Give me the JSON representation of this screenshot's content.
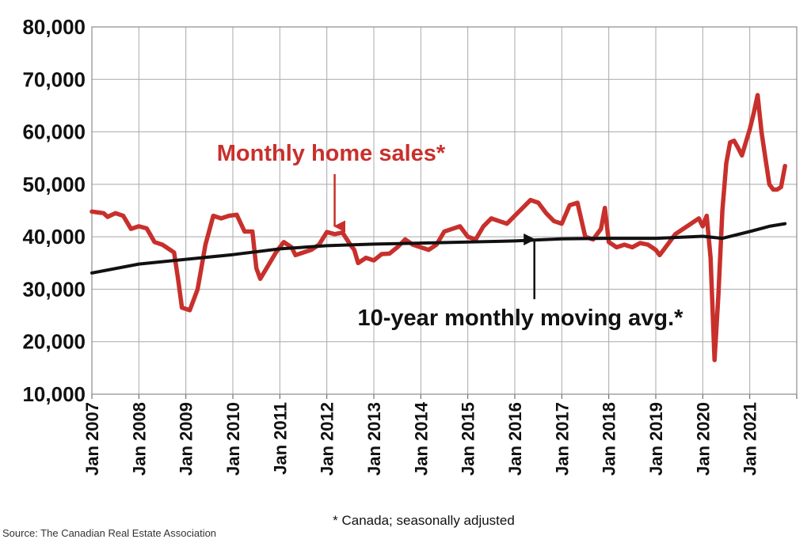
{
  "chart_data": {
    "type": "line",
    "x_tick_labels": [
      "Jan 2007",
      "Jan 2008",
      "Jan 2009",
      "Jan 2010",
      "Jan 2011",
      "Jan 2012",
      "Jan 2013",
      "Jan 2014",
      "Jan 2015",
      "Jan 2016",
      "Jan 2017",
      "Jan 2018",
      "Jan 2019",
      "Jan 2020",
      "Jan 2021"
    ],
    "y_tick_labels": [
      "10,000",
      "20,000",
      "30,000",
      "40,000",
      "50,000",
      "60,000",
      "70,000",
      "80,000"
    ],
    "ylim": [
      10000,
      80000
    ],
    "xlim": [
      "2007-01",
      "2022-01"
    ],
    "grid": true,
    "series": [
      {
        "name": "Monthly home sales*",
        "color": "#c8302c",
        "points": [
          [
            "2007-01",
            44800
          ],
          [
            "2007-04",
            44500
          ],
          [
            "2007-05",
            43800
          ],
          [
            "2007-07",
            44500
          ],
          [
            "2007-09",
            44000
          ],
          [
            "2007-11",
            41500
          ],
          [
            "2008-01",
            42000
          ],
          [
            "2008-03",
            41600
          ],
          [
            "2008-05",
            39000
          ],
          [
            "2008-07",
            38500
          ],
          [
            "2008-09",
            37500
          ],
          [
            "2008-10",
            37000
          ],
          [
            "2008-11",
            32000
          ],
          [
            "2008-12",
            26500
          ],
          [
            "2009-02",
            26000
          ],
          [
            "2009-04",
            30000
          ],
          [
            "2009-06",
            38500
          ],
          [
            "2009-08",
            44000
          ],
          [
            "2009-10",
            43500
          ],
          [
            "2009-12",
            44000
          ],
          [
            "2010-02",
            44200
          ],
          [
            "2010-04",
            41000
          ],
          [
            "2010-06",
            41000
          ],
          [
            "2010-07",
            34000
          ],
          [
            "2010-08",
            32000
          ],
          [
            "2010-10",
            34500
          ],
          [
            "2010-12",
            37000
          ],
          [
            "2011-01",
            38000
          ],
          [
            "2011-02",
            39000
          ],
          [
            "2011-04",
            38000
          ],
          [
            "2011-05",
            36500
          ],
          [
            "2011-07",
            37000
          ],
          [
            "2011-09",
            37500
          ],
          [
            "2011-11",
            38500
          ],
          [
            "2012-01",
            40900
          ],
          [
            "2012-03",
            40500
          ],
          [
            "2012-05",
            40800
          ],
          [
            "2012-07",
            38500
          ],
          [
            "2012-08",
            37500
          ],
          [
            "2012-09",
            35000
          ],
          [
            "2012-11",
            36000
          ],
          [
            "2013-01",
            35500
          ],
          [
            "2013-03",
            36700
          ],
          [
            "2013-05",
            36800
          ],
          [
            "2013-07",
            38000
          ],
          [
            "2013-09",
            39500
          ],
          [
            "2013-11",
            38500
          ],
          [
            "2014-01",
            38000
          ],
          [
            "2014-03",
            37500
          ],
          [
            "2014-05",
            38500
          ],
          [
            "2014-07",
            41000
          ],
          [
            "2014-09",
            41500
          ],
          [
            "2014-11",
            42000
          ],
          [
            "2015-01",
            40000
          ],
          [
            "2015-03",
            39500
          ],
          [
            "2015-05",
            42000
          ],
          [
            "2015-07",
            43500
          ],
          [
            "2015-09",
            43000
          ],
          [
            "2015-11",
            42500
          ],
          [
            "2016-01",
            44000
          ],
          [
            "2016-03",
            45500
          ],
          [
            "2016-05",
            47000
          ],
          [
            "2016-07",
            46500
          ],
          [
            "2016-09",
            44500
          ],
          [
            "2016-11",
            43000
          ],
          [
            "2017-01",
            42500
          ],
          [
            "2017-03",
            46000
          ],
          [
            "2017-05",
            46500
          ],
          [
            "2017-07",
            40000
          ],
          [
            "2017-09",
            39500
          ],
          [
            "2017-11",
            41500
          ],
          [
            "2017-12",
            45500
          ],
          [
            "2018-01",
            39000
          ],
          [
            "2018-03",
            38000
          ],
          [
            "2018-05",
            38500
          ],
          [
            "2018-07",
            38000
          ],
          [
            "2018-09",
            38800
          ],
          [
            "2018-11",
            38500
          ],
          [
            "2019-01",
            37500
          ],
          [
            "2019-02",
            36500
          ],
          [
            "2019-04",
            38500
          ],
          [
            "2019-06",
            40500
          ],
          [
            "2019-08",
            41500
          ],
          [
            "2019-10",
            42500
          ],
          [
            "2019-12",
            43500
          ],
          [
            "2020-01",
            42000
          ],
          [
            "2020-02",
            44000
          ],
          [
            "2020-03",
            36000
          ],
          [
            "2020-04",
            16500
          ],
          [
            "2020-05",
            29000
          ],
          [
            "2020-06",
            45000
          ],
          [
            "2020-07",
            54000
          ],
          [
            "2020-08",
            58000
          ],
          [
            "2020-09",
            58300
          ],
          [
            "2020-10",
            57000
          ],
          [
            "2020-11",
            55500
          ],
          [
            "2020-12",
            58000
          ],
          [
            "2021-01",
            60500
          ],
          [
            "2021-02",
            63500
          ],
          [
            "2021-03",
            67000
          ],
          [
            "2021-04",
            60000
          ],
          [
            "2021-05",
            55000
          ],
          [
            "2021-06",
            50000
          ],
          [
            "2021-07",
            49000
          ],
          [
            "2021-08",
            49000
          ],
          [
            "2021-09",
            49500
          ],
          [
            "2021-10",
            53500
          ]
        ]
      },
      {
        "name": "10-year monthly moving avg.*",
        "color": "#111111",
        "points": [
          [
            "2007-01",
            33100
          ],
          [
            "2008-01",
            34800
          ],
          [
            "2009-01",
            35700
          ],
          [
            "2010-01",
            36600
          ],
          [
            "2011-01",
            37700
          ],
          [
            "2012-01",
            38300
          ],
          [
            "2013-01",
            38600
          ],
          [
            "2014-01",
            38800
          ],
          [
            "2015-01",
            39000
          ],
          [
            "2016-01",
            39200
          ],
          [
            "2017-01",
            39600
          ],
          [
            "2018-01",
            39700
          ],
          [
            "2019-01",
            39700
          ],
          [
            "2020-01",
            40100
          ],
          [
            "2020-06",
            39700
          ],
          [
            "2021-01",
            41000
          ],
          [
            "2021-06",
            42000
          ],
          [
            "2021-10",
            42500
          ]
        ]
      }
    ]
  },
  "annotations": {
    "sales_label": "Monthly home sales*",
    "avg_label": "10-year monthly moving avg.*",
    "sales_arrow_at": [
      "2012-03",
      42000
    ],
    "avg_arrow_at": [
      "2016-06",
      39500
    ]
  },
  "footnote": "* Canada; seasonally adjusted",
  "source": "Source: The Canadian Real Estate Association"
}
